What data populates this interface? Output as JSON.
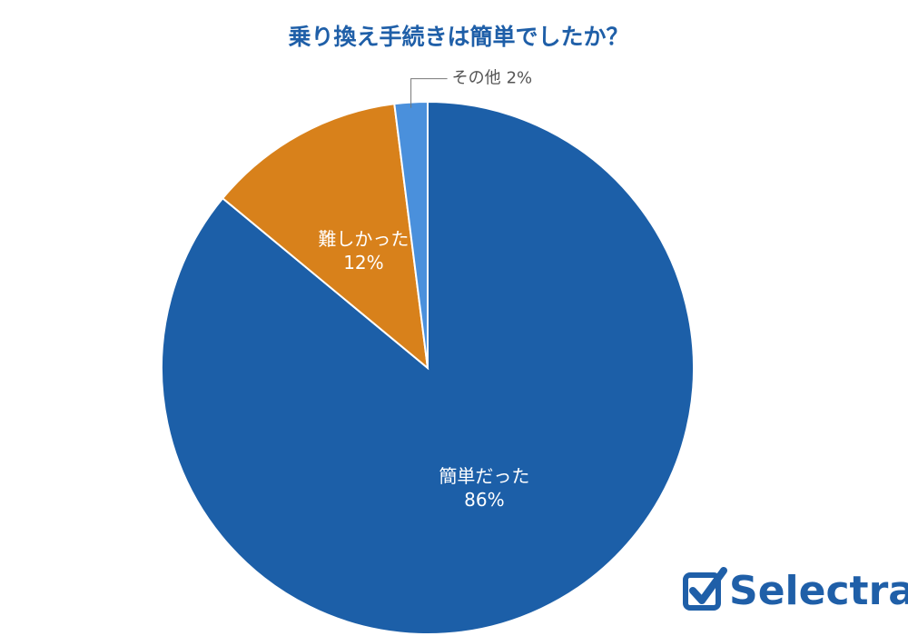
{
  "chart_data": {
    "type": "pie",
    "title": "乗り換え手続きは簡単でしたか？",
    "categories": [
      "簡単だった",
      "難しかった",
      "その他"
    ],
    "values": [
      86,
      12,
      2
    ],
    "value_labels": [
      "86%",
      "12%",
      "2%"
    ],
    "colors": [
      "#1c5fa8",
      "#d8811b",
      "#4a90dc"
    ]
  },
  "logo": "Selectra"
}
